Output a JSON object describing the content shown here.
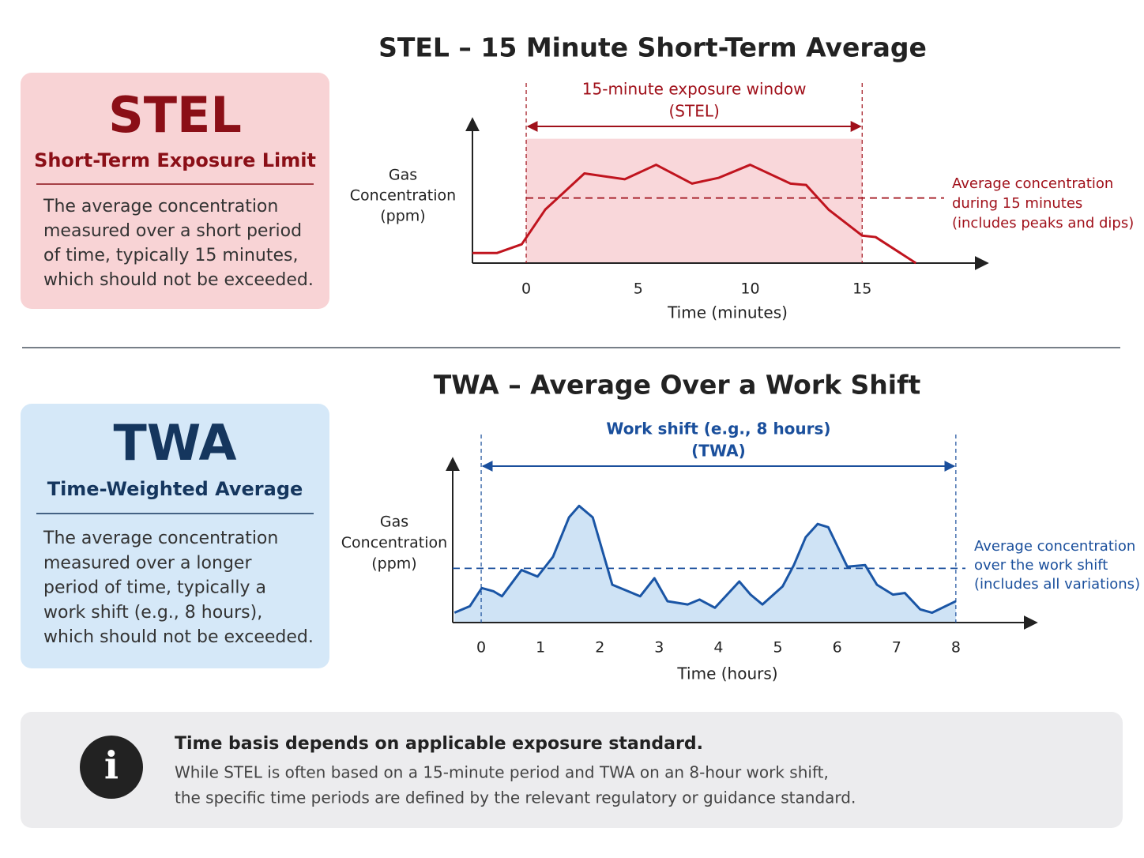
{
  "cards": [
    {
      "title": "STEL",
      "subtitle": "Short-Term Exposure Limit",
      "color": "#8b0f17",
      "background": "#f8d3d5",
      "text": [
        "The average concentration",
        "measured over a short period",
        "of time, typically 15 minutes,",
        "which should not be exceeded."
      ]
    },
    {
      "title": "TWA",
      "subtitle": "Time-Weighted Average",
      "color": "#15365e",
      "background": "#d5e8f8",
      "text": [
        "The average concentration",
        "measured over a longer",
        "period of time, typically a",
        "work shift (e.g., 8 hours),",
        "which should not be exceeded."
      ]
    }
  ],
  "note": {
    "icon": "i",
    "title": "Time basis depends on applicable exposure standard.",
    "text": [
      "While STEL is often based on a 15-minute period and TWA on an 8-hour work shift,",
      "the specific time periods are defined by the relevant regulatory or guidance standard."
    ]
  },
  "chart_data": [
    {
      "type": "line",
      "title": "STEL – 15 Minute Short-Term Average",
      "y_label": [
        "Gas",
        "Concentration",
        "(ppm)"
      ],
      "x_label": "Time (minutes)",
      "xlim": [
        -2.4,
        20.6
      ],
      "xticks": [
        0,
        5,
        10,
        15
      ],
      "ylim": [
        0,
        10
      ],
      "x": [
        -2.4,
        -1.3,
        -0.2,
        0.85,
        2.6,
        4.4,
        5.8,
        7.4,
        8.6,
        10,
        11.8,
        12.5,
        13.5,
        15,
        15.6,
        16.7,
        17.4
      ],
      "values": [
        0.7,
        0.7,
        1.3,
        3.7,
        6.2,
        5.8,
        6.8,
        5.5,
        5.9,
        6.8,
        5.5,
        5.4,
        3.7,
        1.9,
        1.8,
        0.7,
        0
      ],
      "color": "#c0141e",
      "label_color": "#a0101a",
      "shade_color": "#f9d7da",
      "shading": "window",
      "window_top": 8.6,
      "window": [
        0,
        15
      ],
      "window_label": [
        "15-minute exposure window",
        "(STEL)"
      ],
      "reference_value": 4.5,
      "reference_label": [
        "Average concentration",
        "during 15 minutes",
        "(includes peaks and dips)"
      ]
    },
    {
      "type": "line",
      "title": "TWA – Average Over a Work Shift",
      "y_label": [
        "Gas",
        "Concentration",
        "(ppm)"
      ],
      "x_label": "Time (hours)",
      "xlim": [
        -0.48,
        9.36
      ],
      "xticks": [
        0,
        1,
        2,
        3,
        4,
        5,
        6,
        7,
        8
      ],
      "ylim": [
        0,
        10
      ],
      "x": [
        -0.45,
        -0.19,
        0.01,
        0.21,
        0.35,
        0.68,
        0.95,
        1.21,
        1.48,
        1.65,
        1.88,
        2.21,
        2.48,
        2.68,
        2.92,
        3.14,
        3.48,
        3.68,
        3.94,
        4.35,
        4.54,
        4.74,
        5.08,
        5.27,
        5.47,
        5.67,
        5.85,
        6.17,
        6.47,
        6.67,
        6.94,
        7.14,
        7.4,
        7.6,
        8
      ],
      "values": [
        0.6,
        1.0,
        2.1,
        1.9,
        1.6,
        3.2,
        2.8,
        4.0,
        6.4,
        7.1,
        6.4,
        2.3,
        1.9,
        1.6,
        2.7,
        1.3,
        1.1,
        1.4,
        0.9,
        2.5,
        1.7,
        1.1,
        2.2,
        3.5,
        5.2,
        6.0,
        5.8,
        3.4,
        3.5,
        2.3,
        1.7,
        1.8,
        0.8,
        0.6,
        1.3
      ],
      "color": "#1a55a5",
      "label_color": "#1a4f9c",
      "shade_color": "#cfe3f5",
      "shading": "area",
      "window": [
        0,
        8
      ],
      "window_label": [
        "Work shift (e.g., 8 hours)",
        "(TWA)"
      ],
      "reference_value": 3.3,
      "reference_label": [
        "Average concentration",
        "over the work shift",
        "(includes all variations)"
      ]
    }
  ]
}
